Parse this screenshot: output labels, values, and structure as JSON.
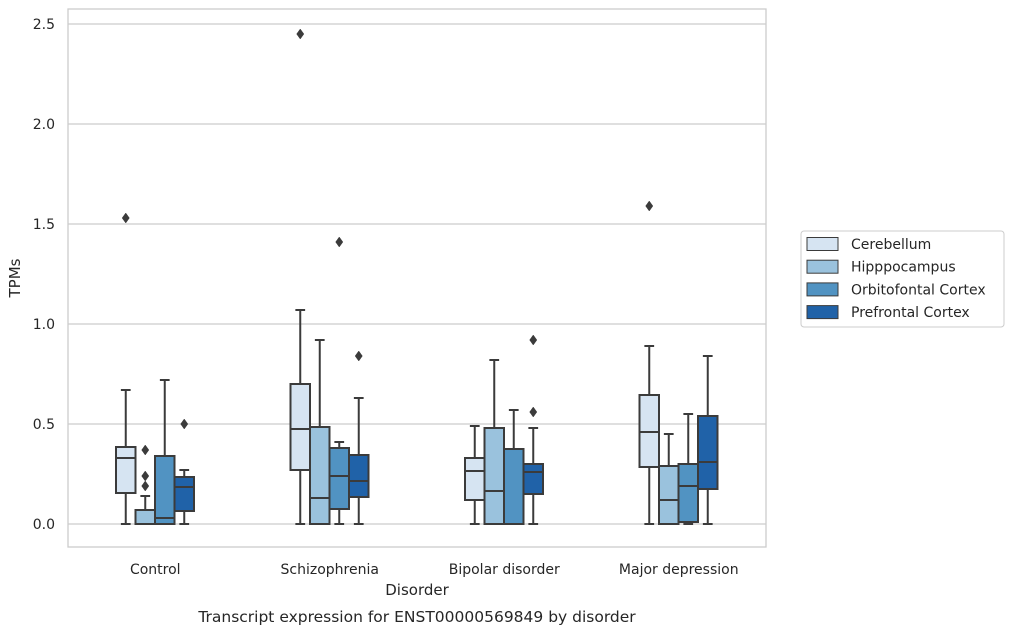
{
  "chart_data": {
    "type": "box",
    "title": "",
    "caption": "Transcript expression for ENST00000569849 by disorder",
    "xlabel": "Disorder",
    "ylabel": "TPMs",
    "ylim": [
      -0.12,
      2.58
    ],
    "yticks": [
      "0.0",
      "0.5",
      "1.0",
      "1.5",
      "2.0",
      "2.5"
    ],
    "grid": true,
    "legend_position": "right",
    "categories": [
      "Control",
      "Schizophrenia",
      "Bipolar disorder",
      "Major depression"
    ],
    "series": [
      {
        "name": "Cerebellum",
        "color": "#d6e4f2",
        "boxes": [
          {
            "whisker_low": 0.0,
            "q1": 0.155,
            "median": 0.33,
            "q3": 0.385,
            "whisker_high": 0.67,
            "outliers": [
              1.53
            ]
          },
          {
            "whisker_low": 0.0,
            "q1": 0.27,
            "median": 0.475,
            "q3": 0.7,
            "whisker_high": 1.07,
            "outliers": [
              2.45
            ]
          },
          {
            "whisker_low": 0.0,
            "q1": 0.12,
            "median": 0.265,
            "q3": 0.33,
            "whisker_high": 0.49,
            "outliers": []
          },
          {
            "whisker_low": 0.0,
            "q1": 0.285,
            "median": 0.46,
            "q3": 0.645,
            "whisker_high": 0.89,
            "outliers": [
              1.59
            ]
          }
        ]
      },
      {
        "name": "Hipppocampus",
        "color": "#9ac2dd",
        "boxes": [
          {
            "whisker_low": 0.0,
            "q1": 0.0,
            "median": 0.0,
            "q3": 0.07,
            "whisker_high": 0.14,
            "outliers": [
              0.37,
              0.24,
              0.19
            ]
          },
          {
            "whisker_low": 0.0,
            "q1": 0.0,
            "median": 0.13,
            "q3": 0.485,
            "whisker_high": 0.92,
            "outliers": []
          },
          {
            "whisker_low": 0.0,
            "q1": 0.0,
            "median": 0.165,
            "q3": 0.48,
            "whisker_high": 0.82,
            "outliers": []
          },
          {
            "whisker_low": 0.0,
            "q1": 0.0,
            "median": 0.12,
            "q3": 0.29,
            "whisker_high": 0.45,
            "outliers": []
          }
        ]
      },
      {
        "name": "Orbitofontal Cortex",
        "color": "#5193c2",
        "boxes": [
          {
            "whisker_low": 0.0,
            "q1": 0.0,
            "median": 0.03,
            "q3": 0.34,
            "whisker_high": 0.72,
            "outliers": []
          },
          {
            "whisker_low": 0.0,
            "q1": 0.075,
            "median": 0.24,
            "q3": 0.38,
            "whisker_high": 0.41,
            "outliers": [
              1.41
            ]
          },
          {
            "whisker_low": 0.0,
            "q1": 0.0,
            "median": 0.0,
            "q3": 0.375,
            "whisker_high": 0.57,
            "outliers": []
          },
          {
            "whisker_low": 0.0,
            "q1": 0.01,
            "median": 0.19,
            "q3": 0.3,
            "whisker_high": 0.55,
            "outliers": []
          }
        ]
      },
      {
        "name": "Prefrontal Cortex",
        "color": "#2062a8",
        "boxes": [
          {
            "whisker_low": 0.0,
            "q1": 0.065,
            "median": 0.185,
            "q3": 0.235,
            "whisker_high": 0.27,
            "outliers": [
              0.5
            ]
          },
          {
            "whisker_low": 0.0,
            "q1": 0.135,
            "median": 0.215,
            "q3": 0.345,
            "whisker_high": 0.63,
            "outliers": [
              0.84
            ]
          },
          {
            "whisker_low": 0.0,
            "q1": 0.15,
            "median": 0.26,
            "q3": 0.3,
            "whisker_high": 0.48,
            "outliers": [
              0.92,
              0.56
            ]
          },
          {
            "whisker_low": 0.0,
            "q1": 0.175,
            "median": 0.31,
            "q3": 0.54,
            "whisker_high": 0.84,
            "outliers": []
          }
        ]
      }
    ]
  }
}
